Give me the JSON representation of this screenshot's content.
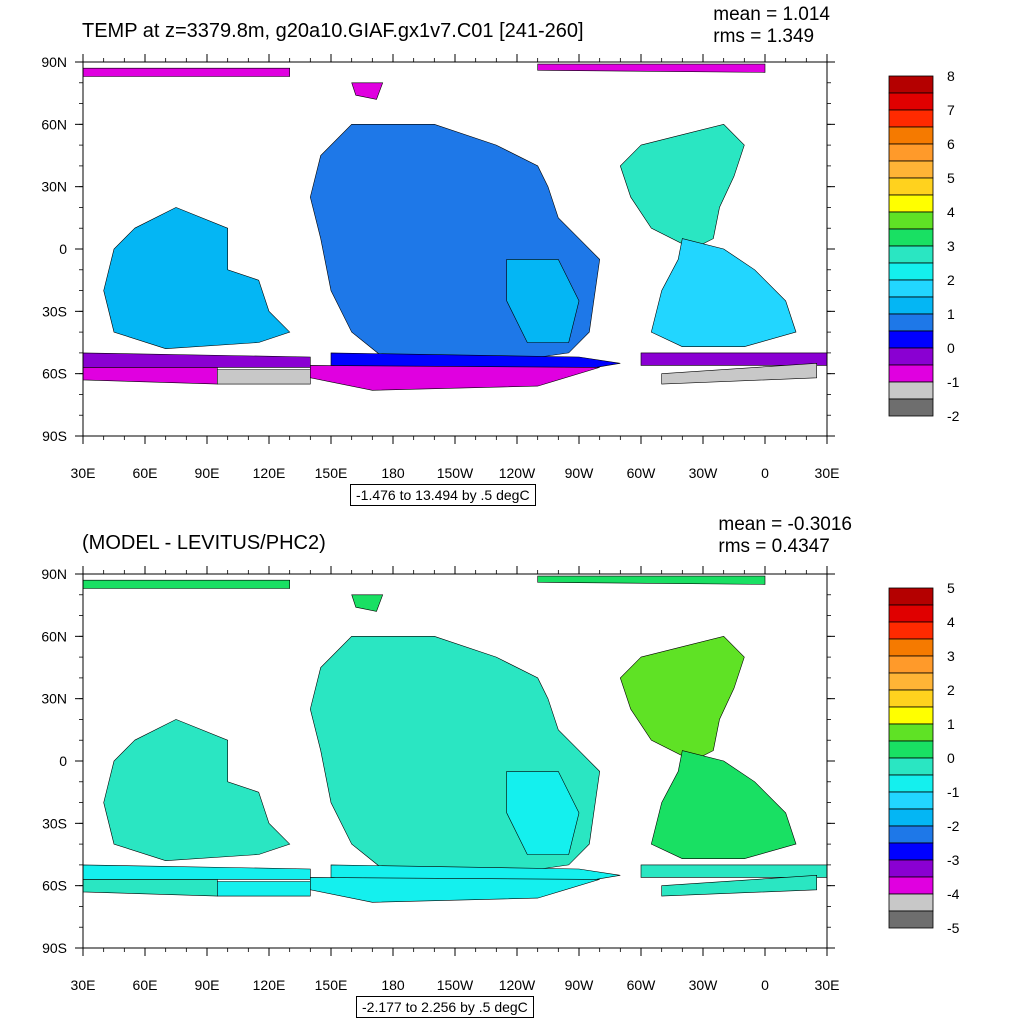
{
  "colors": {
    "land": "#ffffff",
    "frame": "#000000",
    "contour": "#000000"
  },
  "chart_data": [
    {
      "type": "heatmap",
      "title": "TEMP at z=3379.8m, g20a10.GIAF.gx1v7.C01 [241-260]",
      "stats": {
        "mean_label": "mean = 1.014",
        "rms_label": "rms = 1.349"
      },
      "range_label": "-1.476 to 13.494 by .5 degC",
      "x_ticks": [
        "30E",
        "60E",
        "90E",
        "120E",
        "150E",
        "180",
        "150W",
        "120W",
        "90W",
        "60W",
        "30W",
        "0",
        "30E"
      ],
      "y_ticks": [
        "90N",
        "60N",
        "30N",
        "0",
        "30S",
        "60S",
        "90S"
      ],
      "xlim": [
        30,
        390
      ],
      "ylim": [
        -90,
        90
      ],
      "colorbar": {
        "tick_labels": [
          "8",
          "7",
          "6",
          "5",
          "4",
          "3",
          "2",
          "1",
          "0",
          "-1",
          "-2"
        ],
        "colors": [
          "#b40000",
          "#e00000",
          "#ff2a00",
          "#f57a00",
          "#ff9a2a",
          "#ffb436",
          "#ffd21e",
          "#ffff00",
          "#5fe225",
          "#19e063",
          "#2ae6c2",
          "#14f0ee",
          "#22d6ff",
          "#04b6f4",
          "#1e78e8",
          "#0000ff",
          "#8a00d2",
          "#e000e0",
          "#c8c8c8",
          "#6e6e6e"
        ]
      },
      "regions": [
        {
          "name": "pacific-deep",
          "color": "#1e78e8",
          "points": [
            [
              160,
              60
            ],
            [
              200,
              60
            ],
            [
              230,
              50
            ],
            [
              250,
              40
            ],
            [
              255,
              30
            ],
            [
              260,
              15
            ],
            [
              270,
              5
            ],
            [
              280,
              -5
            ],
            [
              275,
              -40
            ],
            [
              265,
              -50
            ],
            [
              230,
              -55
            ],
            [
              200,
              -55
            ],
            [
              175,
              -52
            ],
            [
              160,
              -40
            ],
            [
              150,
              -20
            ],
            [
              145,
              5
            ],
            [
              140,
              25
            ],
            [
              145,
              45
            ]
          ]
        },
        {
          "name": "indian-ocean",
          "color": "#04b6f4",
          "points": [
            [
              55,
              10
            ],
            [
              75,
              20
            ],
            [
              100,
              10
            ],
            [
              100,
              -10
            ],
            [
              115,
              -15
            ],
            [
              120,
              -30
            ],
            [
              130,
              -40
            ],
            [
              115,
              -45
            ],
            [
              70,
              -48
            ],
            [
              45,
              -40
            ],
            [
              40,
              -20
            ],
            [
              45,
              0
            ]
          ]
        },
        {
          "name": "atlantic-north",
          "color": "#2ae6c2",
          "points": [
            [
              300,
              50
            ],
            [
              320,
              55
            ],
            [
              340,
              60
            ],
            [
              350,
              50
            ],
            [
              345,
              35
            ],
            [
              338,
              20
            ],
            [
              335,
              5
            ],
            [
              325,
              0
            ],
            [
              305,
              10
            ],
            [
              295,
              25
            ],
            [
              290,
              40
            ]
          ]
        },
        {
          "name": "atlantic-south",
          "color": "#22d6ff",
          "points": [
            [
              320,
              5
            ],
            [
              340,
              0
            ],
            [
              355,
              -10
            ],
            [
              370,
              -25
            ],
            [
              375,
              -40
            ],
            [
              350,
              -47
            ],
            [
              320,
              -47
            ],
            [
              305,
              -40
            ],
            [
              310,
              -20
            ],
            [
              318,
              -5
            ]
          ]
        },
        {
          "name": "south-pacific-east",
          "color": "#04b6f4",
          "points": [
            [
              235,
              -5
            ],
            [
              260,
              -5
            ],
            [
              270,
              -25
            ],
            [
              265,
              -45
            ],
            [
              245,
              -45
            ],
            [
              235,
              -25
            ]
          ]
        },
        {
          "name": "southern-ocean-band",
          "color": "#0000ff",
          "points": [
            [
              150,
              -50
            ],
            [
              270,
              -52
            ],
            [
              290,
              -55
            ],
            [
              260,
              -60
            ],
            [
              200,
              -60
            ],
            [
              150,
              -56
            ]
          ]
        },
        {
          "name": "southern-ocean-west",
          "color": "#8a00d2",
          "points": [
            [
              30,
              -50
            ],
            [
              140,
              -52
            ],
            [
              140,
              -57
            ],
            [
              30,
              -57
            ]
          ]
        },
        {
          "name": "southern-ocean-east",
          "color": "#8a00d2",
          "points": [
            [
              300,
              -50
            ],
            [
              390,
              -50
            ],
            [
              390,
              -56
            ],
            [
              300,
              -56
            ]
          ]
        },
        {
          "name": "antarctic-margin-a",
          "color": "#e000e0",
          "points": [
            [
              30,
              -57
            ],
            [
              95,
              -57
            ],
            [
              95,
              -65
            ],
            [
              30,
              -63
            ]
          ]
        },
        {
          "name": "antarctic-margin-b",
          "color": "#c8c8c8",
          "points": [
            [
              95,
              -58
            ],
            [
              140,
              -58
            ],
            [
              140,
              -65
            ],
            [
              95,
              -65
            ]
          ]
        },
        {
          "name": "antarctic-margin-c",
          "color": "#e000e0",
          "points": [
            [
              140,
              -56
            ],
            [
              280,
              -57
            ],
            [
              250,
              -66
            ],
            [
              170,
              -68
            ],
            [
              140,
              -62
            ]
          ]
        },
        {
          "name": "antarctic-margin-d",
          "color": "#c8c8c8",
          "points": [
            [
              310,
              -60
            ],
            [
              385,
              -55
            ],
            [
              385,
              -62
            ],
            [
              310,
              -65
            ]
          ]
        },
        {
          "name": "arctic-a",
          "color": "#e000e0",
          "points": [
            [
              30,
              87
            ],
            [
              130,
              87
            ],
            [
              130,
              83
            ],
            [
              30,
              83
            ]
          ]
        },
        {
          "name": "arctic-b",
          "color": "#e000e0",
          "points": [
            [
              160,
              80
            ],
            [
              175,
              80
            ],
            [
              172,
              72
            ],
            [
              162,
              74
            ]
          ]
        },
        {
          "name": "arctic-c",
          "color": "#e000e0",
          "points": [
            [
              250,
              89
            ],
            [
              360,
              89
            ],
            [
              360,
              85
            ],
            [
              250,
              86
            ]
          ]
        }
      ]
    },
    {
      "type": "heatmap",
      "title": "(MODEL - LEVITUS/PHC2)",
      "stats": {
        "mean_label": "mean = -0.3016",
        "rms_label": "rms = 0.4347"
      },
      "range_label": "-2.177 to 2.256 by .5 degC",
      "x_ticks": [
        "30E",
        "60E",
        "90E",
        "120E",
        "150E",
        "180",
        "150W",
        "120W",
        "90W",
        "60W",
        "30W",
        "0",
        "30E"
      ],
      "y_ticks": [
        "90N",
        "60N",
        "30N",
        "0",
        "30S",
        "60S",
        "90S"
      ],
      "xlim": [
        30,
        390
      ],
      "ylim": [
        -90,
        90
      ],
      "colorbar": {
        "tick_labels": [
          "5",
          "4",
          "3",
          "2",
          "1",
          "0",
          "-1",
          "-2",
          "-3",
          "-4",
          "-5"
        ],
        "colors": [
          "#b40000",
          "#e00000",
          "#ff2a00",
          "#f57a00",
          "#ff9a2a",
          "#ffb436",
          "#ffd21e",
          "#ffff00",
          "#5fe225",
          "#19e063",
          "#2ae6c2",
          "#14f0ee",
          "#22d6ff",
          "#04b6f4",
          "#1e78e8",
          "#0000ff",
          "#8a00d2",
          "#e000e0",
          "#c8c8c8",
          "#6e6e6e"
        ]
      },
      "regions": [
        {
          "name": "pacific-deep",
          "color": "#2ae6c2",
          "points": [
            [
              160,
              60
            ],
            [
              200,
              60
            ],
            [
              230,
              50
            ],
            [
              250,
              40
            ],
            [
              255,
              30
            ],
            [
              260,
              15
            ],
            [
              270,
              5
            ],
            [
              280,
              -5
            ],
            [
              275,
              -40
            ],
            [
              265,
              -50
            ],
            [
              230,
              -55
            ],
            [
              200,
              -55
            ],
            [
              175,
              -52
            ],
            [
              160,
              -40
            ],
            [
              150,
              -20
            ],
            [
              145,
              5
            ],
            [
              140,
              25
            ],
            [
              145,
              45
            ]
          ]
        },
        {
          "name": "indian-ocean",
          "color": "#2ae6c2",
          "points": [
            [
              55,
              10
            ],
            [
              75,
              20
            ],
            [
              100,
              10
            ],
            [
              100,
              -10
            ],
            [
              115,
              -15
            ],
            [
              120,
              -30
            ],
            [
              130,
              -40
            ],
            [
              115,
              -45
            ],
            [
              70,
              -48
            ],
            [
              45,
              -40
            ],
            [
              40,
              -20
            ],
            [
              45,
              0
            ]
          ]
        },
        {
          "name": "atlantic-north",
          "color": "#5fe225",
          "points": [
            [
              300,
              50
            ],
            [
              320,
              55
            ],
            [
              340,
              60
            ],
            [
              350,
              50
            ],
            [
              345,
              35
            ],
            [
              338,
              20
            ],
            [
              335,
              5
            ],
            [
              325,
              0
            ],
            [
              305,
              10
            ],
            [
              295,
              25
            ],
            [
              290,
              40
            ]
          ]
        },
        {
          "name": "atlantic-south",
          "color": "#19e063",
          "points": [
            [
              320,
              5
            ],
            [
              340,
              0
            ],
            [
              355,
              -10
            ],
            [
              370,
              -25
            ],
            [
              375,
              -40
            ],
            [
              350,
              -47
            ],
            [
              320,
              -47
            ],
            [
              305,
              -40
            ],
            [
              310,
              -20
            ],
            [
              318,
              -5
            ]
          ]
        },
        {
          "name": "south-pacific-east",
          "color": "#14f0ee",
          "points": [
            [
              235,
              -5
            ],
            [
              260,
              -5
            ],
            [
              270,
              -25
            ],
            [
              265,
              -45
            ],
            [
              245,
              -45
            ],
            [
              235,
              -25
            ]
          ]
        },
        {
          "name": "southern-ocean-band",
          "color": "#14f0ee",
          "points": [
            [
              150,
              -50
            ],
            [
              270,
              -52
            ],
            [
              290,
              -55
            ],
            [
              260,
              -60
            ],
            [
              200,
              -60
            ],
            [
              150,
              -56
            ]
          ]
        },
        {
          "name": "southern-ocean-west",
          "color": "#14f0ee",
          "points": [
            [
              30,
              -50
            ],
            [
              140,
              -52
            ],
            [
              140,
              -57
            ],
            [
              30,
              -57
            ]
          ]
        },
        {
          "name": "southern-ocean-east",
          "color": "#2ae6c2",
          "points": [
            [
              300,
              -50
            ],
            [
              390,
              -50
            ],
            [
              390,
              -56
            ],
            [
              300,
              -56
            ]
          ]
        },
        {
          "name": "antarctic-margin-a",
          "color": "#2ae6c2",
          "points": [
            [
              30,
              -57
            ],
            [
              95,
              -57
            ],
            [
              95,
              -65
            ],
            [
              30,
              -63
            ]
          ]
        },
        {
          "name": "antarctic-margin-b",
          "color": "#14f0ee",
          "points": [
            [
              95,
              -58
            ],
            [
              140,
              -58
            ],
            [
              140,
              -65
            ],
            [
              95,
              -65
            ]
          ]
        },
        {
          "name": "antarctic-margin-c",
          "color": "#14f0ee",
          "points": [
            [
              140,
              -56
            ],
            [
              280,
              -57
            ],
            [
              250,
              -66
            ],
            [
              170,
              -68
            ],
            [
              140,
              -62
            ]
          ]
        },
        {
          "name": "antarctic-margin-d",
          "color": "#2ae6c2",
          "points": [
            [
              310,
              -60
            ],
            [
              385,
              -55
            ],
            [
              385,
              -62
            ],
            [
              310,
              -65
            ]
          ]
        },
        {
          "name": "arctic-a",
          "color": "#19e063",
          "points": [
            [
              30,
              87
            ],
            [
              130,
              87
            ],
            [
              130,
              83
            ],
            [
              30,
              83
            ]
          ]
        },
        {
          "name": "arctic-b",
          "color": "#19e063",
          "points": [
            [
              160,
              80
            ],
            [
              175,
              80
            ],
            [
              172,
              72
            ],
            [
              162,
              74
            ]
          ]
        },
        {
          "name": "arctic-c",
          "color": "#19e063",
          "points": [
            [
              250,
              89
            ],
            [
              360,
              89
            ],
            [
              360,
              85
            ],
            [
              250,
              86
            ]
          ]
        }
      ]
    }
  ]
}
